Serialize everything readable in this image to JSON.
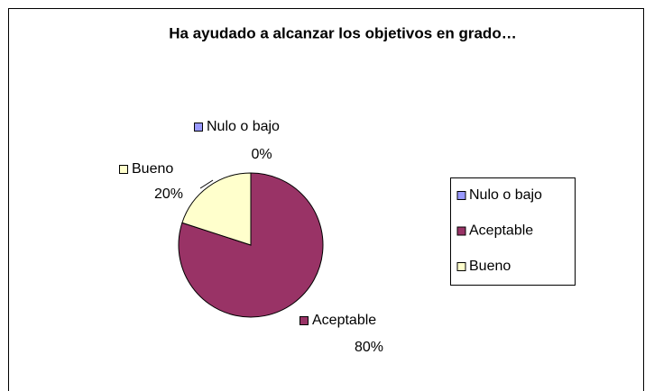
{
  "chart_data": {
    "type": "pie",
    "title": "Ha ayudado a alcanzar los objetivos en grado…",
    "categories": [
      "Nulo o bajo",
      "Aceptable",
      "Bueno"
    ],
    "values": [
      0,
      80,
      20
    ],
    "value_labels": [
      "0%",
      "80%",
      "20%"
    ],
    "colors": [
      "#9999ff",
      "#993366",
      "#ffffcc"
    ],
    "legend": "right"
  }
}
